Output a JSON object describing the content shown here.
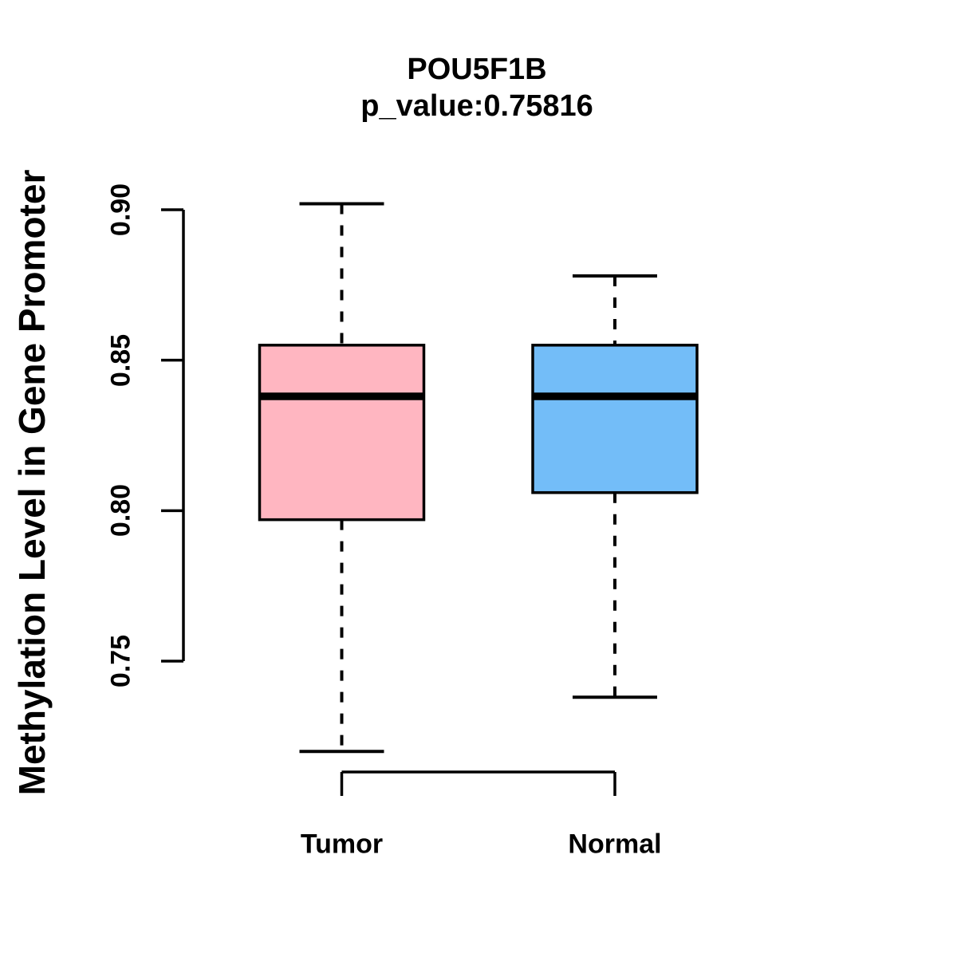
{
  "figure": {
    "background": "#FFFFFF",
    "text_color": "#000000"
  },
  "chart_data": {
    "type": "boxplot",
    "title": "POU5F1B",
    "subtitle": "p_value:0.75816",
    "ylabel": "Methylation Level in Gene Promoter",
    "xlabel": "",
    "categories": [
      "Tumor",
      "Normal"
    ],
    "series": [
      {
        "name": "Tumor",
        "color": "#FFB6C1",
        "stats": {
          "lower_whisker": 0.72,
          "q1": 0.797,
          "median": 0.838,
          "q3": 0.855,
          "upper_whisker": 0.902
        }
      },
      {
        "name": "Normal",
        "color": "#73BDF8",
        "stats": {
          "lower_whisker": 0.738,
          "q1": 0.806,
          "median": 0.838,
          "q3": 0.855,
          "upper_whisker": 0.878
        }
      }
    ],
    "y_axis": {
      "ticks": [
        0.9,
        0.85,
        0.8,
        0.75
      ],
      "tick_labels": [
        "0.90",
        "0.85",
        "0.80",
        "0.75"
      ],
      "range_shown": [
        0.75,
        0.9
      ]
    },
    "styles": {
      "box_border_color": "#000000",
      "median_color": "#000000",
      "whisker_color": "#000000",
      "whisker_style": "dashed",
      "axis_color": "#000000"
    },
    "legend": "none",
    "grid": false
  }
}
